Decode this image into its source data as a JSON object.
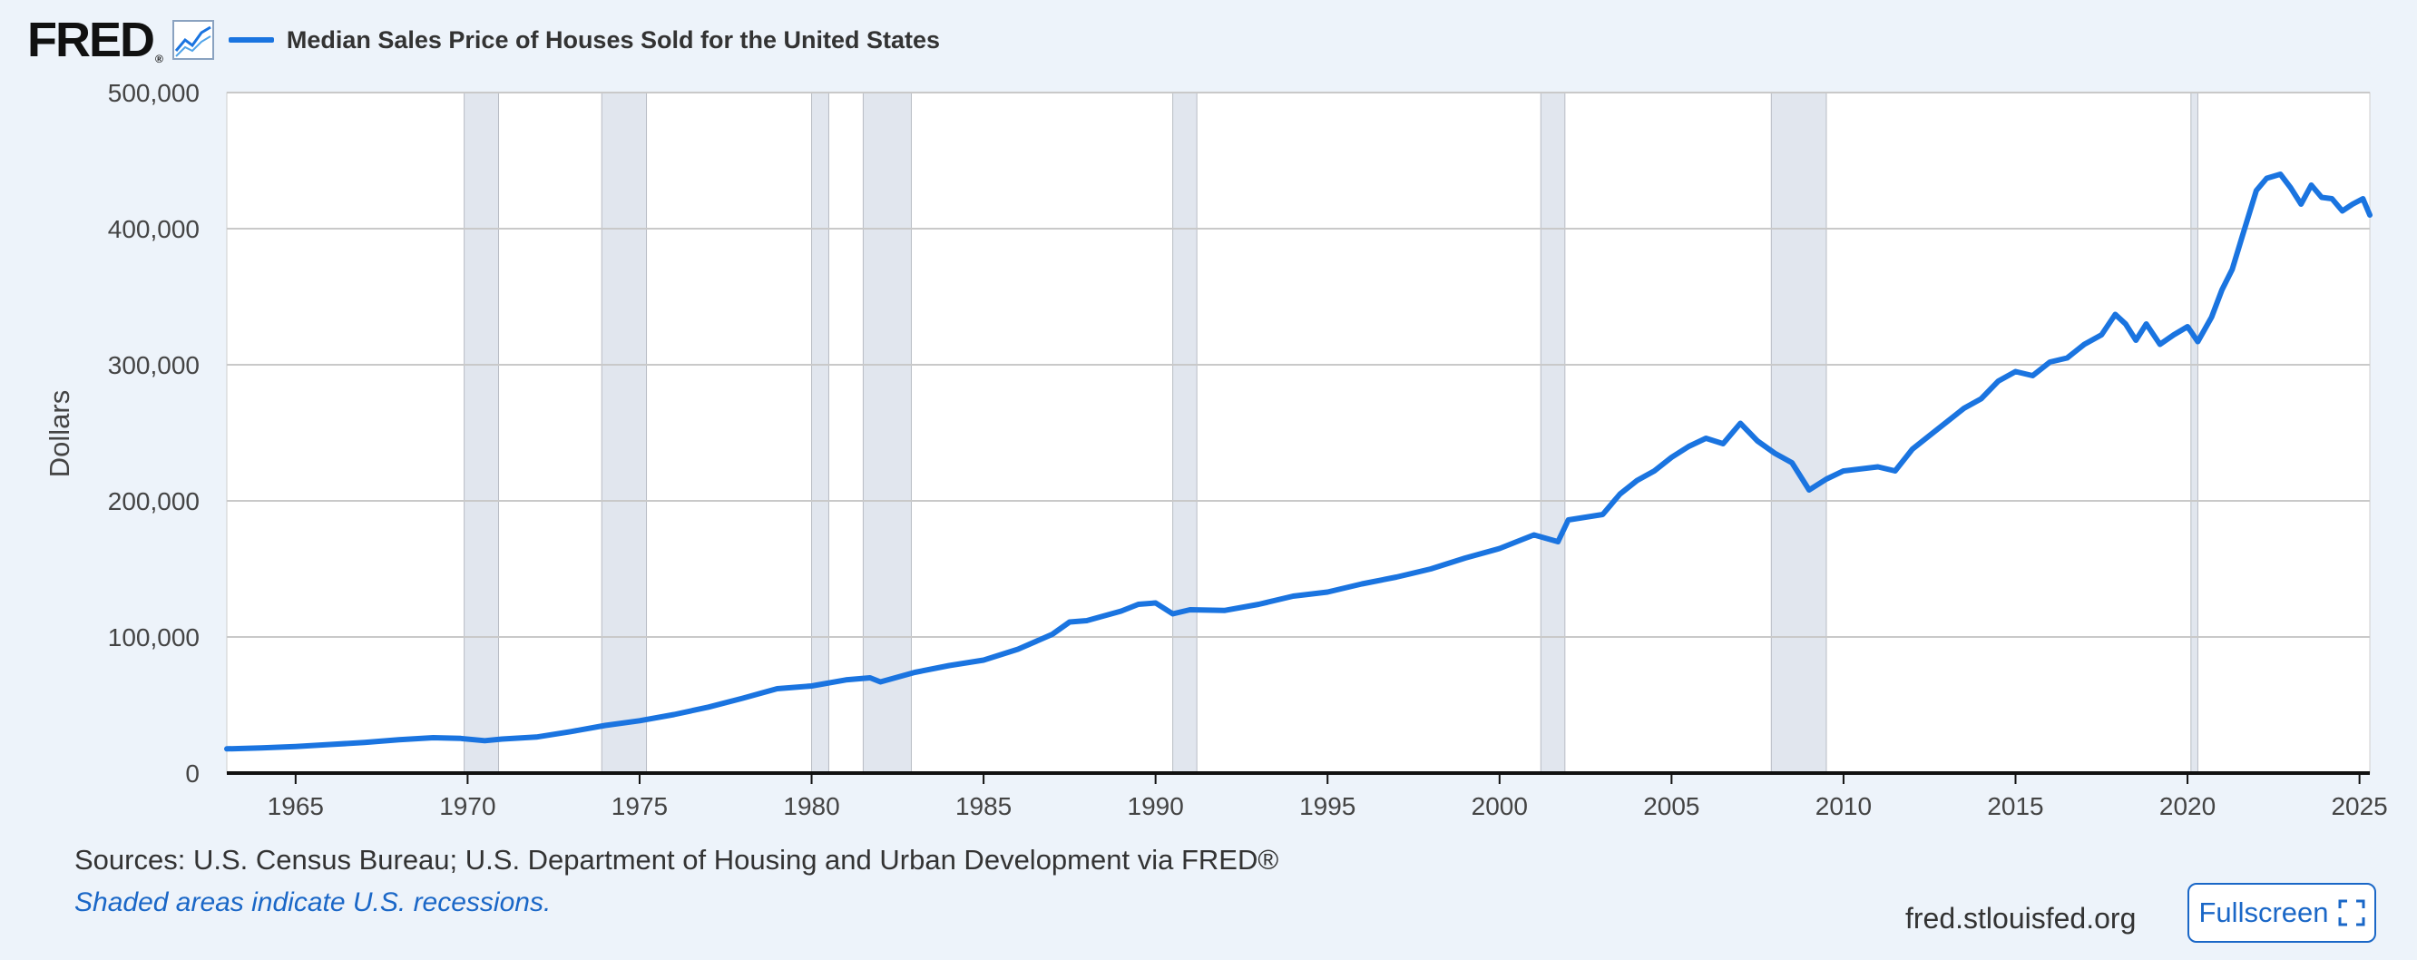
{
  "header": {
    "logo_text": "FRED",
    "logo_mark": "®",
    "graph_icon": "line-graph-icon",
    "legend_label": "Median Sales Price of Houses Sold for the United States"
  },
  "footer": {
    "sources": "Sources: U.S. Census Bureau; U.S. Department of Housing and Urban Development via FRED®",
    "note": "Shaded areas indicate U.S. recessions.",
    "site": "fred.stlouisfed.org",
    "fullscreen_label": "Fullscreen",
    "fullscreen_icon": "fullscreen-icon"
  },
  "colors": {
    "series": "#1a74e0",
    "recession": "#e1e6ee",
    "grid": "#c9c9c9",
    "axis": "#111111",
    "accent": "#1a67c7"
  },
  "chart_data": {
    "type": "line",
    "title": "",
    "xlabel": "",
    "ylabel": "Dollars",
    "xlim": [
      1963.0,
      2025.3
    ],
    "ylim": [
      0,
      500000
    ],
    "grid": true,
    "legend": "top-left",
    "xticks": [
      1965,
      1970,
      1975,
      1980,
      1985,
      1990,
      1995,
      2000,
      2005,
      2010,
      2015,
      2020,
      2025
    ],
    "yticks": [
      0,
      100000,
      200000,
      300000,
      400000,
      500000
    ],
    "ytick_labels": [
      "0",
      "100,000",
      "200,000",
      "300,000",
      "400,000",
      "500,000"
    ],
    "recessions": [
      [
        1969.9,
        1970.9
      ],
      [
        1973.9,
        1975.2
      ],
      [
        1980.0,
        1980.5
      ],
      [
        1981.5,
        1982.9
      ],
      [
        1990.5,
        1991.2
      ],
      [
        2001.2,
        2001.9
      ],
      [
        2007.9,
        2009.5
      ],
      [
        2020.1,
        2020.3
      ]
    ],
    "series": [
      {
        "name": "Median Sales Price of Houses Sold for the United States",
        "points": [
          [
            1963.0,
            17800
          ],
          [
            1964.0,
            18500
          ],
          [
            1965.0,
            19500
          ],
          [
            1966.0,
            21000
          ],
          [
            1967.0,
            22500
          ],
          [
            1968.0,
            24500
          ],
          [
            1969.0,
            26000
          ],
          [
            1969.8,
            25500
          ],
          [
            1970.5,
            23800
          ],
          [
            1971.0,
            25000
          ],
          [
            1972.0,
            26500
          ],
          [
            1973.0,
            30500
          ],
          [
            1974.0,
            35000
          ],
          [
            1975.0,
            38500
          ],
          [
            1976.0,
            43000
          ],
          [
            1977.0,
            48500
          ],
          [
            1978.0,
            55000
          ],
          [
            1979.0,
            62000
          ],
          [
            1980.0,
            64000
          ],
          [
            1981.0,
            68500
          ],
          [
            1981.7,
            70000
          ],
          [
            1982.0,
            67000
          ],
          [
            1983.0,
            74000
          ],
          [
            1984.0,
            79000
          ],
          [
            1985.0,
            83000
          ],
          [
            1986.0,
            91000
          ],
          [
            1987.0,
            102000
          ],
          [
            1987.5,
            111000
          ],
          [
            1988.0,
            112000
          ],
          [
            1989.0,
            119000
          ],
          [
            1989.5,
            124000
          ],
          [
            1990.0,
            125000
          ],
          [
            1990.5,
            117000
          ],
          [
            1991.0,
            120000
          ],
          [
            1992.0,
            119500
          ],
          [
            1993.0,
            124000
          ],
          [
            1994.0,
            130000
          ],
          [
            1995.0,
            133000
          ],
          [
            1996.0,
            139000
          ],
          [
            1997.0,
            144000
          ],
          [
            1998.0,
            150000
          ],
          [
            1999.0,
            158000
          ],
          [
            2000.0,
            165000
          ],
          [
            2000.5,
            170000
          ],
          [
            2001.0,
            175000
          ],
          [
            2001.7,
            170000
          ],
          [
            2002.0,
            186000
          ],
          [
            2003.0,
            190000
          ],
          [
            2003.5,
            205000
          ],
          [
            2004.0,
            215000
          ],
          [
            2004.5,
            222000
          ],
          [
            2005.0,
            232000
          ],
          [
            2005.5,
            240000
          ],
          [
            2006.0,
            246000
          ],
          [
            2006.5,
            242000
          ],
          [
            2007.0,
            257000
          ],
          [
            2007.5,
            244000
          ],
          [
            2008.0,
            235000
          ],
          [
            2008.5,
            228000
          ],
          [
            2009.0,
            208000
          ],
          [
            2009.5,
            216000
          ],
          [
            2010.0,
            222000
          ],
          [
            2011.0,
            225000
          ],
          [
            2011.5,
            222000
          ],
          [
            2012.0,
            238000
          ],
          [
            2012.5,
            248000
          ],
          [
            2013.0,
            258000
          ],
          [
            2013.5,
            268000
          ],
          [
            2014.0,
            275000
          ],
          [
            2014.5,
            288000
          ],
          [
            2015.0,
            295000
          ],
          [
            2015.5,
            292000
          ],
          [
            2016.0,
            302000
          ],
          [
            2016.5,
            305000
          ],
          [
            2017.0,
            315000
          ],
          [
            2017.5,
            322000
          ],
          [
            2017.9,
            337000
          ],
          [
            2018.2,
            330000
          ],
          [
            2018.5,
            318000
          ],
          [
            2018.8,
            330000
          ],
          [
            2019.2,
            315000
          ],
          [
            2019.6,
            322000
          ],
          [
            2020.0,
            328000
          ],
          [
            2020.3,
            317000
          ],
          [
            2020.7,
            335000
          ],
          [
            2021.0,
            355000
          ],
          [
            2021.3,
            370000
          ],
          [
            2021.6,
            395000
          ],
          [
            2022.0,
            428000
          ],
          [
            2022.3,
            437000
          ],
          [
            2022.7,
            440000
          ],
          [
            2023.0,
            430000
          ],
          [
            2023.3,
            418000
          ],
          [
            2023.6,
            432000
          ],
          [
            2023.9,
            423000
          ],
          [
            2024.2,
            422000
          ],
          [
            2024.5,
            413000
          ],
          [
            2024.8,
            418000
          ],
          [
            2025.1,
            422000
          ],
          [
            2025.3,
            410000
          ]
        ]
      }
    ]
  }
}
